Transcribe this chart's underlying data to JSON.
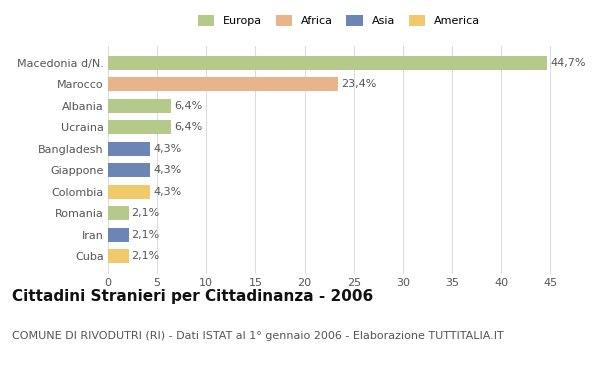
{
  "categories": [
    "Macedonia d/N.",
    "Marocco",
    "Albania",
    "Ucraina",
    "Bangladesh",
    "Giappone",
    "Colombia",
    "Romania",
    "Iran",
    "Cuba"
  ],
  "values": [
    44.7,
    23.4,
    6.4,
    6.4,
    4.3,
    4.3,
    4.3,
    2.1,
    2.1,
    2.1
  ],
  "labels": [
    "44,7%",
    "23,4%",
    "6,4%",
    "6,4%",
    "4,3%",
    "4,3%",
    "4,3%",
    "2,1%",
    "2,1%",
    "2,1%"
  ],
  "colors": [
    "#b5c98a",
    "#e8b48a",
    "#b5c98a",
    "#b5c98a",
    "#6b85b5",
    "#6b85b5",
    "#f0c96b",
    "#b5c98a",
    "#6b85b5",
    "#f0c96b"
  ],
  "legend_labels": [
    "Europa",
    "Africa",
    "Asia",
    "America"
  ],
  "legend_colors": [
    "#b5c98a",
    "#e8b48a",
    "#6b85b5",
    "#f0c96b"
  ],
  "title": "Cittadini Stranieri per Cittadinanza - 2006",
  "subtitle": "COMUNE DI RIVODUTRI (RI) - Dati ISTAT al 1° gennaio 2006 - Elaborazione TUTTITALIA.IT",
  "xlim": [
    0,
    47
  ],
  "background_color": "#ffffff",
  "grid_color": "#dddddd",
  "title_fontsize": 11,
  "subtitle_fontsize": 8,
  "label_fontsize": 8,
  "tick_fontsize": 8
}
